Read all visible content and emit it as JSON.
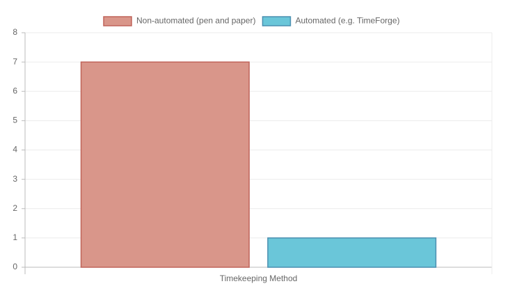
{
  "chart_data": {
    "type": "bar",
    "categories": [
      "Timekeeping Method"
    ],
    "series": [
      {
        "name": "Non-automated (pen and paper)",
        "color": "#d9968a",
        "border": "#c0645a",
        "values": [
          7
        ]
      },
      {
        "name": "Automated (e.g. TimeForge)",
        "color": "#6ac6d9",
        "border": "#4a8fb0",
        "values": [
          1
        ]
      }
    ],
    "ylim": [
      0,
      8
    ],
    "yticks": [
      0,
      1,
      2,
      3,
      4,
      5,
      6,
      7,
      8
    ],
    "grid": true,
    "legend": "top"
  }
}
